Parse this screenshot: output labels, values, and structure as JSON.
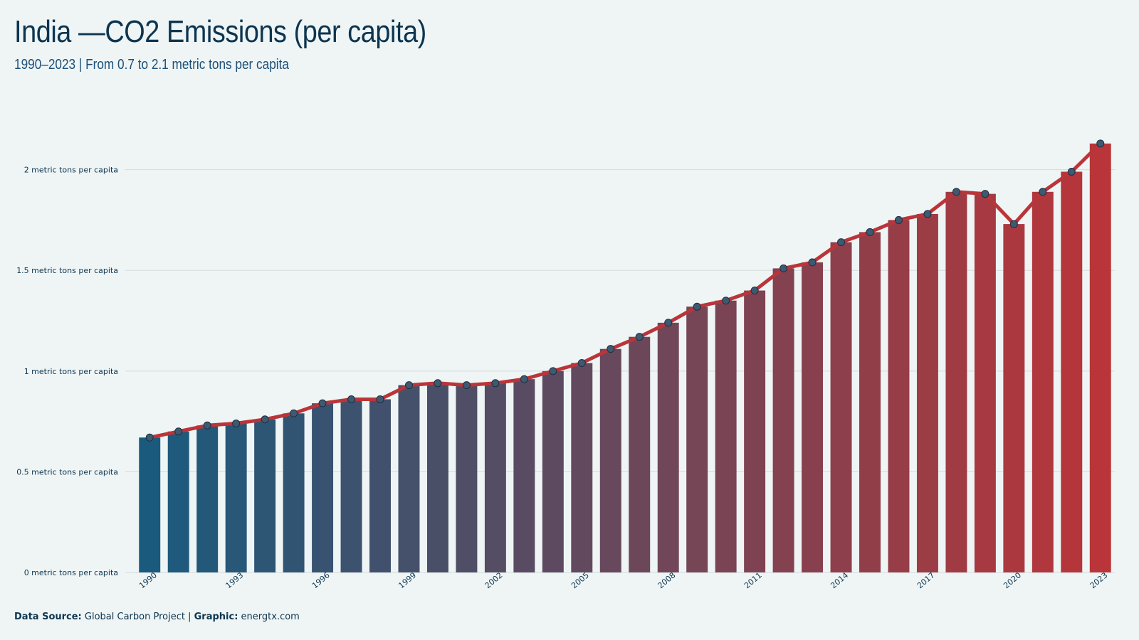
{
  "header": {
    "title": "India —CO2 Emissions (per capita)",
    "subtitle": "1990–2023 | From 0.7 to 2.1 metric tons per capita"
  },
  "footer": {
    "source_label": "Data Source:",
    "source_value": "Global Carbon Project",
    "separator": "|",
    "graphic_label": "Graphic:",
    "graphic_value": "energtx.com"
  },
  "colors": {
    "bar_start": "#1a5a7d",
    "bar_end": "#b93539",
    "line": "#b93539",
    "marker_fill": "#3e5a72",
    "grid": "#d3dbdd",
    "background": "#eff5f5"
  },
  "chart_data": {
    "type": "bar",
    "overlay": "line",
    "x": [
      1990,
      1991,
      1992,
      1993,
      1994,
      1995,
      1996,
      1997,
      1998,
      1999,
      2000,
      2001,
      2002,
      2003,
      2004,
      2005,
      2006,
      2007,
      2008,
      2009,
      2010,
      2011,
      2012,
      2013,
      2014,
      2015,
      2016,
      2017,
      2018,
      2019,
      2020,
      2021,
      2022,
      2023
    ],
    "values": [
      0.67,
      0.7,
      0.73,
      0.74,
      0.76,
      0.79,
      0.84,
      0.86,
      0.86,
      0.93,
      0.94,
      0.93,
      0.94,
      0.96,
      1.0,
      1.04,
      1.11,
      1.17,
      1.24,
      1.32,
      1.35,
      1.4,
      1.51,
      1.54,
      1.64,
      1.69,
      1.75,
      1.78,
      1.89,
      1.88,
      1.73,
      1.89,
      1.99,
      2.13
    ],
    "x_tick_labels": [
      "1990",
      "1993",
      "1996",
      "1999",
      "2002",
      "2005",
      "2008",
      "2011",
      "2014",
      "2017",
      "2020",
      "2023"
    ],
    "y_tick_values": [
      0,
      0.5,
      1,
      1.5,
      2
    ],
    "y_tick_labels": [
      "0 metric tons per capita",
      "0.5 metric tons per capita",
      "1 metric tons per capita",
      "1.5 metric tons per capita",
      "2 metric tons per capita"
    ],
    "ylim": [
      0,
      2.2
    ],
    "grid": true,
    "legend": "none"
  }
}
